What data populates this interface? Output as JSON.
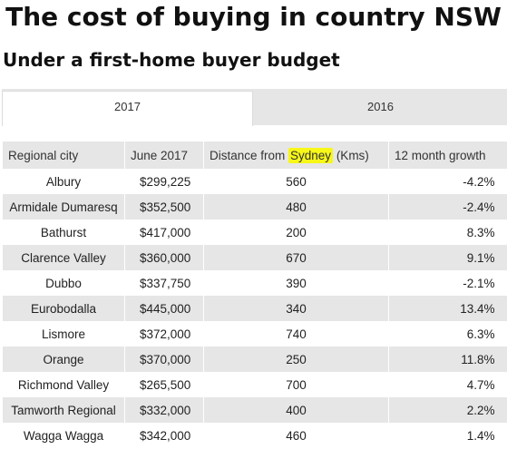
{
  "title": "The cost of buying in country NSW",
  "subtitle": "Under a first-home buyer budget",
  "tabs": [
    {
      "label": "2017",
      "active": true
    },
    {
      "label": "2016",
      "active": false
    }
  ],
  "table": {
    "headers": {
      "city": "Regional city",
      "price": "June 2017",
      "distance_prefix": "Distance from ",
      "distance_highlight": "Sydney",
      "distance_suffix": " (Kms)",
      "growth": "12 month growth"
    },
    "highlight_color": "#f7f718",
    "rows": [
      {
        "city": "Albury",
        "price": "$299,225",
        "distance": "560",
        "growth": "-4.2%"
      },
      {
        "city": "Armidale Dumaresq",
        "price": "$352,500",
        "distance": "480",
        "growth": "-2.4%"
      },
      {
        "city": "Bathurst",
        "price": "$417,000",
        "distance": "200",
        "growth": "8.3%"
      },
      {
        "city": "Clarence Valley",
        "price": "$360,000",
        "distance": "670",
        "growth": "9.1%"
      },
      {
        "city": "Dubbo",
        "price": "$337,750",
        "distance": "390",
        "growth": "-2.1%"
      },
      {
        "city": "Eurobodalla",
        "price": "$445,000",
        "distance": "340",
        "growth": "13.4%"
      },
      {
        "city": "Lismore",
        "price": "$372,000",
        "distance": "740",
        "growth": "6.3%"
      },
      {
        "city": "Orange",
        "price": "$370,000",
        "distance": "250",
        "growth": "11.8%"
      },
      {
        "city": "Richmond Valley",
        "price": "$265,500",
        "distance": "700",
        "growth": "4.7%"
      },
      {
        "city": "Tamworth Regional",
        "price": "$332,000",
        "distance": "400",
        "growth": "2.2%"
      },
      {
        "city": "Wagga Wagga",
        "price": "$342,000",
        "distance": "460",
        "growth": "1.4%"
      }
    ]
  }
}
